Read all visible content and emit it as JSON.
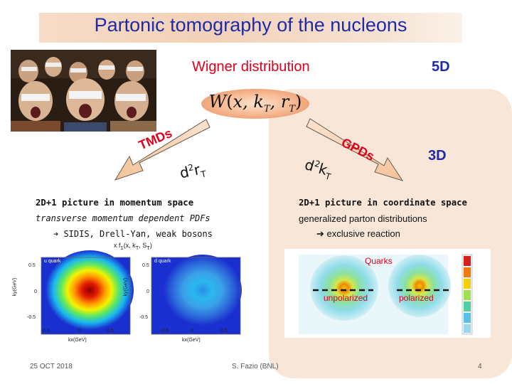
{
  "title": "Partonic tomography of the nucleons",
  "wigner": {
    "heading": "Wigner distribution",
    "dim": "5D",
    "formula": "W(x, kT, rT)"
  },
  "left_arrow": {
    "label": "TMDs",
    "integration": "d²rT"
  },
  "right_arrow": {
    "label": "GPDs",
    "integration": "d²kT",
    "dim": "3D"
  },
  "left_text": {
    "heading": "2D+1 picture in momentum space",
    "line1": "transverse momentum dependent PDFs",
    "line2": "➔ SIDIS, Drell-Yan, weak bosons"
  },
  "right_text": {
    "heading": "2D+1 picture in coordinate space",
    "line1": "generalized parton distributions",
    "line2": "➔ exclusive reaction"
  },
  "left_plots": {
    "title": "x f1(x, kT, ST)",
    "panels": [
      {
        "label": "u quark",
        "xlabel": "kx(GeV)",
        "ylabel": "ky(GeV)"
      },
      {
        "label": "d quark",
        "xlabel": "kx(GeV)",
        "ylabel": "ky(GeV)"
      }
    ],
    "ticks": [
      "0.5",
      "0",
      "-0.5"
    ]
  },
  "right_plots": {
    "quarks_label": "Quarks",
    "labels": [
      "unpolarized",
      "polarized"
    ]
  },
  "footer": {
    "date": "25 OCT 2018",
    "author": "S. Fazio (BNL)",
    "page": "4"
  },
  "colors": {
    "title": "#1f2aa8",
    "accent_red": "#e0001c",
    "panel": "#f8e7d8",
    "title_bar": "#f2d2b8"
  }
}
